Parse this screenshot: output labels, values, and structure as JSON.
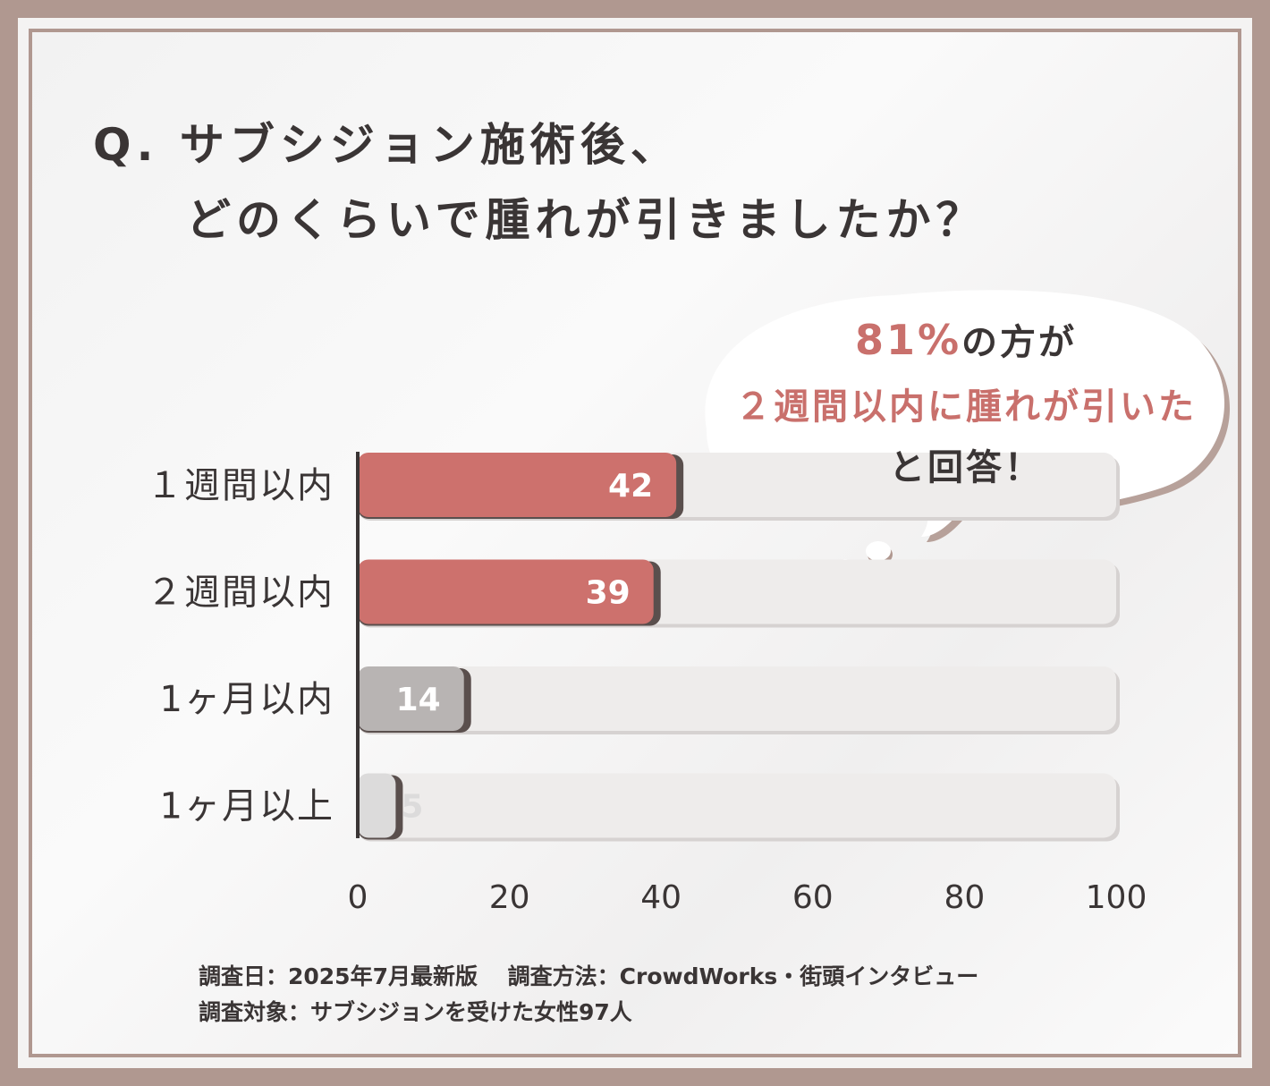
{
  "title": {
    "line1": "Q. サブシジョン施術後、",
    "line2": "どのくらいで腫れが引きましたか？"
  },
  "callout": {
    "percent": "81%",
    "line1_rest": "の方が",
    "line2": "２週間以内に腫れが引いた",
    "line3": "と回答！"
  },
  "footer": {
    "line1": "調査日：2025年7月最新版　 調査方法：CrowdWorks・街頭インタビュー",
    "line2": "調査対象：サブシジョンを受けた女性97人"
  },
  "colors": {
    "highlight": "#cd716d",
    "neutral": "#b8b4b3",
    "light": "#dcdbdb",
    "track": "#eeeceb",
    "frame": "#b09890",
    "text": "#3a3535"
  },
  "chart_data": {
    "type": "bar",
    "orientation": "horizontal",
    "categories": [
      "１週間以内",
      "２週間以内",
      "1ヶ月以内",
      "1ヶ月以上"
    ],
    "values": [
      42,
      39,
      14,
      5
    ],
    "xlim": [
      0,
      100
    ],
    "xticks": [
      0,
      20,
      40,
      60,
      80,
      100
    ],
    "bar_colors": [
      "highlight",
      "highlight",
      "neutral",
      "light"
    ],
    "grid": false,
    "legend": "none"
  }
}
